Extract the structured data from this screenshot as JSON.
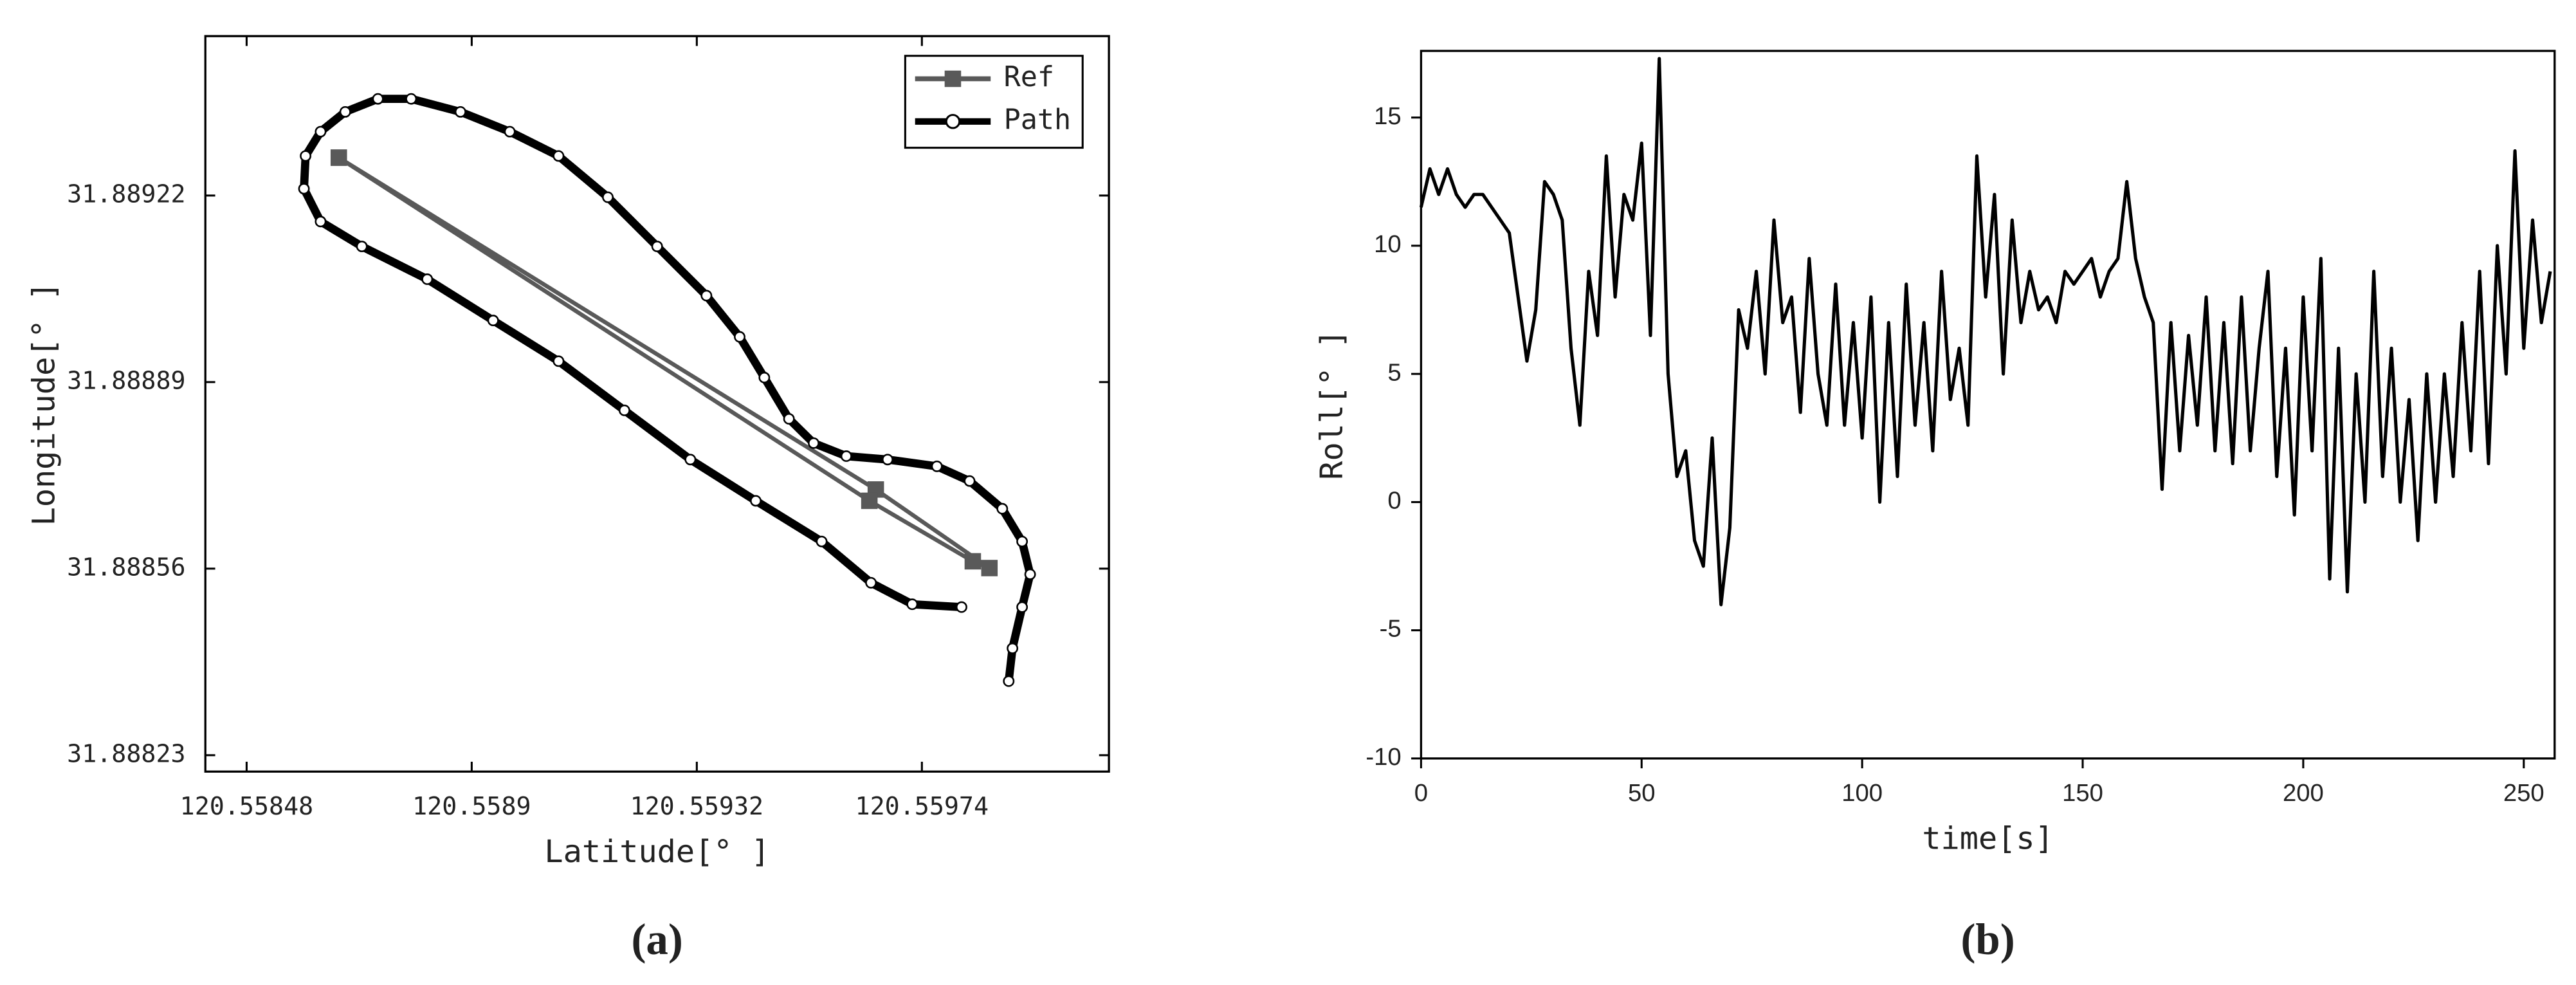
{
  "chart_data": [
    {
      "type": "line",
      "xlabel": "Latitude[° ]",
      "ylabel": "Longitude[° ]",
      "caption": "(a)",
      "xlim": [
        120.558403,
        120.560089
      ],
      "ylim": [
        31.888201,
        31.889502
      ],
      "xticks": [
        120.55848,
        120.5589,
        120.55932,
        120.55974
      ],
      "yticks": [
        31.88823,
        31.88856,
        31.88889,
        31.88922
      ],
      "legend": "upper right",
      "series": [
        {
          "name": "Ref",
          "color": "#595959",
          "marker": "square",
          "x": [
            120.558652,
            120.559654,
            120.559866,
            120.559835,
            120.559642,
            120.558652
          ],
          "values": [
            31.889287,
            31.8887,
            31.888561,
            31.888573,
            31.88868,
            31.889287
          ]
        },
        {
          "name": "Path",
          "color": "#000000",
          "marker": "circle",
          "x": [
            120.559902,
            120.559909,
            120.559927,
            120.559942,
            120.559927,
            120.55989,
            120.559829,
            120.559768,
            120.559676,
            120.559599,
            120.559538,
            120.559492,
            120.559446,
            120.5594,
            120.559338,
            120.559246,
            120.559154,
            120.559062,
            120.558971,
            120.558879,
            120.558787,
            120.558725,
            120.558664,
            120.558618,
            120.55859,
            120.558587,
            120.558618,
            120.558695,
            120.558817,
            120.55894,
            120.559062,
            120.559185,
            120.559308,
            120.55943,
            120.559553,
            120.559645,
            120.559722,
            120.559814
          ],
          "values": [
            31.888361,
            31.888419,
            31.888492,
            31.88855,
            31.888608,
            31.888666,
            31.888715,
            31.888741,
            31.888753,
            31.888759,
            31.888782,
            31.888825,
            31.888898,
            31.88897,
            31.889043,
            31.88913,
            31.889217,
            31.88929,
            31.889333,
            31.889368,
            31.889391,
            31.889391,
            31.889368,
            31.889333,
            31.88929,
            31.889232,
            31.889174,
            31.88913,
            31.889072,
            31.888999,
            31.888927,
            31.88884,
            31.888753,
            31.88868,
            31.888608,
            31.888535,
            31.888497,
            31.888492
          ]
        }
      ]
    },
    {
      "type": "line",
      "xlabel": "time[s]",
      "ylabel": "Roll[° ]",
      "caption": "(b)",
      "xlim": [
        0,
        257
      ],
      "ylim": [
        -10,
        17.6
      ],
      "xticks": [
        0,
        50,
        100,
        150,
        200,
        250
      ],
      "yticks": [
        -10,
        -5,
        0,
        5,
        10,
        15
      ],
      "color": "#000000",
      "x": [
        0,
        2,
        4,
        6,
        8,
        10,
        12,
        14,
        16,
        18,
        20,
        22,
        24,
        26,
        28,
        30,
        32,
        34,
        36,
        38,
        40,
        42,
        44,
        46,
        48,
        50,
        52,
        54,
        56,
        58,
        60,
        62,
        64,
        66,
        68,
        70,
        72,
        74,
        76,
        78,
        80,
        82,
        84,
        86,
        88,
        90,
        92,
        94,
        96,
        98,
        100,
        102,
        104,
        106,
        108,
        110,
        112,
        114,
        116,
        118,
        120,
        122,
        124,
        126,
        128,
        130,
        132,
        134,
        136,
        138,
        140,
        142,
        144,
        146,
        148,
        150,
        152,
        154,
        156,
        158,
        160,
        162,
        164,
        166,
        168,
        170,
        172,
        174,
        176,
        178,
        180,
        182,
        184,
        186,
        188,
        190,
        192,
        194,
        196,
        198,
        200,
        202,
        204,
        206,
        208,
        210,
        212,
        214,
        216,
        218,
        220,
        222,
        224,
        226,
        228,
        230,
        232,
        234,
        236,
        238,
        240,
        242,
        244,
        246,
        248,
        250,
        252,
        254,
        256
      ],
      "values": [
        11.5,
        13,
        12,
        13,
        12,
        11.5,
        12,
        12,
        11.5,
        11,
        10.5,
        8,
        5.5,
        7.5,
        12.5,
        12,
        11,
        6,
        3,
        9,
        6.5,
        13.5,
        8,
        12,
        11,
        14,
        6.5,
        17.3,
        5,
        1,
        2,
        -1.5,
        -2.5,
        2.5,
        -4,
        -1,
        7.5,
        6,
        9,
        5,
        11,
        7,
        8,
        3.5,
        9.5,
        5,
        3,
        8.5,
        3,
        7,
        2.5,
        8,
        0,
        7,
        1,
        8.5,
        3,
        7,
        2,
        9,
        4,
        6,
        3,
        13.5,
        8,
        12,
        5,
        11,
        7,
        9,
        7.5,
        8,
        7,
        9,
        8.5,
        9,
        9.5,
        8,
        9,
        9.5,
        12.5,
        9.5,
        8,
        7,
        0.5,
        7,
        2,
        6.5,
        3,
        8,
        2,
        7,
        1.5,
        8,
        2,
        6,
        9,
        1,
        6,
        -0.5,
        8,
        2,
        9.5,
        -3,
        6,
        -3.5,
        5,
        0,
        9,
        1,
        6,
        0,
        4,
        -1.5,
        5,
        0,
        5,
        1,
        7,
        2,
        9,
        1.5,
        10,
        5,
        13.7,
        6,
        11,
        7,
        9
      ]
    }
  ]
}
